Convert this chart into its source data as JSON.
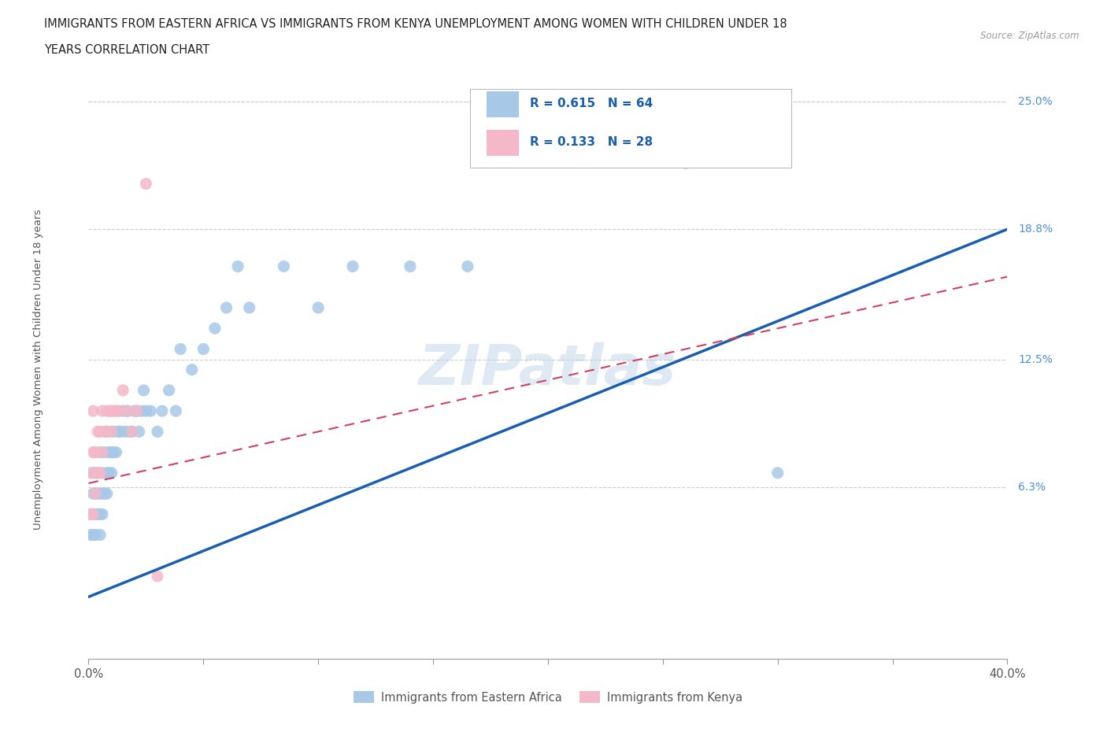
{
  "title_line1": "IMMIGRANTS FROM EASTERN AFRICA VS IMMIGRANTS FROM KENYA UNEMPLOYMENT AMONG WOMEN WITH CHILDREN UNDER 18",
  "title_line2": "YEARS CORRELATION CHART",
  "source": "Source: ZipAtlas.com",
  "ylabel": "Unemployment Among Women with Children Under 18 years",
  "xlim": [
    0.0,
    0.4
  ],
  "ylim": [
    -0.02,
    0.26
  ],
  "ytick_vals": [
    0.063,
    0.125,
    0.188,
    0.25
  ],
  "ytick_labels": [
    "6.3%",
    "12.5%",
    "18.8%",
    "25.0%"
  ],
  "grid_color": "#cccccc",
  "background_color": "#ffffff",
  "watermark": "ZIPatlas",
  "series1_name": "Immigrants from Eastern Africa",
  "series1_color": "#a8c8e8",
  "series1_line_color": "#1a5fac",
  "series1_R": 0.615,
  "series1_N": 64,
  "series2_name": "Immigrants from Kenya",
  "series2_color": "#f4b8c8",
  "series2_line_color": "#d04060",
  "series2_R": 0.133,
  "series2_N": 28,
  "ea_line_x0": 0.0,
  "ea_line_y0": 0.01,
  "ea_line_x1": 0.4,
  "ea_line_y1": 0.188,
  "k_line_x0": 0.0,
  "k_line_y0": 0.065,
  "k_line_x1": 0.4,
  "k_line_y1": 0.165,
  "eastern_africa_x": [
    0.001,
    0.001,
    0.002,
    0.002,
    0.002,
    0.003,
    0.003,
    0.003,
    0.003,
    0.004,
    0.004,
    0.004,
    0.005,
    0.005,
    0.005,
    0.005,
    0.006,
    0.006,
    0.006,
    0.007,
    0.007,
    0.008,
    0.008,
    0.008,
    0.009,
    0.009,
    0.01,
    0.01,
    0.011,
    0.011,
    0.012,
    0.013,
    0.013,
    0.014,
    0.015,
    0.016,
    0.017,
    0.018,
    0.019,
    0.02,
    0.021,
    0.022,
    0.023,
    0.024,
    0.025,
    0.027,
    0.03,
    0.032,
    0.035,
    0.038,
    0.04,
    0.045,
    0.05,
    0.055,
    0.06,
    0.065,
    0.07,
    0.085,
    0.1,
    0.115,
    0.14,
    0.165,
    0.26,
    0.3
  ],
  "eastern_africa_y": [
    0.04,
    0.05,
    0.04,
    0.06,
    0.07,
    0.04,
    0.05,
    0.06,
    0.07,
    0.05,
    0.06,
    0.07,
    0.04,
    0.05,
    0.06,
    0.08,
    0.05,
    0.06,
    0.07,
    0.06,
    0.08,
    0.06,
    0.07,
    0.09,
    0.07,
    0.08,
    0.07,
    0.08,
    0.08,
    0.09,
    0.08,
    0.09,
    0.1,
    0.09,
    0.1,
    0.09,
    0.1,
    0.09,
    0.09,
    0.1,
    0.1,
    0.09,
    0.1,
    0.11,
    0.1,
    0.1,
    0.09,
    0.1,
    0.11,
    0.1,
    0.13,
    0.12,
    0.13,
    0.14,
    0.15,
    0.17,
    0.15,
    0.17,
    0.15,
    0.17,
    0.17,
    0.17,
    0.22,
    0.07
  ],
  "kenya_x": [
    0.001,
    0.001,
    0.002,
    0.002,
    0.002,
    0.003,
    0.003,
    0.004,
    0.004,
    0.005,
    0.005,
    0.006,
    0.006,
    0.007,
    0.008,
    0.008,
    0.009,
    0.01,
    0.01,
    0.011,
    0.012,
    0.013,
    0.015,
    0.017,
    0.019,
    0.021,
    0.025,
    0.03
  ],
  "kenya_y": [
    0.05,
    0.07,
    0.05,
    0.08,
    0.1,
    0.06,
    0.08,
    0.07,
    0.09,
    0.07,
    0.09,
    0.08,
    0.1,
    0.09,
    0.09,
    0.1,
    0.1,
    0.09,
    0.1,
    0.1,
    0.1,
    0.1,
    0.11,
    0.1,
    0.09,
    0.1,
    0.21,
    0.02
  ]
}
